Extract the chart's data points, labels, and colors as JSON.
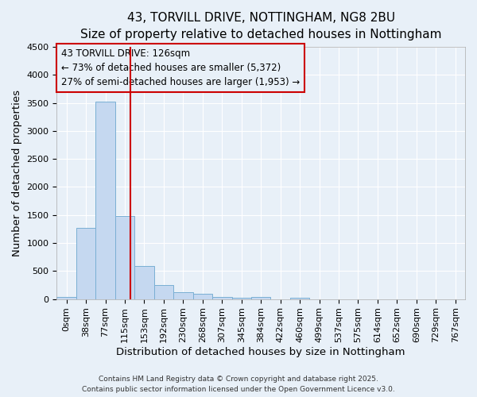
{
  "title_line1": "43, TORVILL DRIVE, NOTTINGHAM, NG8 2BU",
  "title_line2": "Size of property relative to detached houses in Nottingham",
  "xlabel": "Distribution of detached houses by size in Nottingham",
  "ylabel": "Number of detached properties",
  "bar_color": "#c5d8f0",
  "bar_edge_color": "#7aafd4",
  "background_color": "#e8f0f8",
  "grid_color": "#ffffff",
  "x_labels": [
    "0sqm",
    "38sqm",
    "77sqm",
    "115sqm",
    "153sqm",
    "192sqm",
    "230sqm",
    "268sqm",
    "307sqm",
    "345sqm",
    "384sqm",
    "422sqm",
    "460sqm",
    "499sqm",
    "537sqm",
    "575sqm",
    "614sqm",
    "652sqm",
    "690sqm",
    "729sqm",
    "767sqm"
  ],
  "bar_values": [
    30,
    1270,
    3530,
    1480,
    590,
    245,
    120,
    90,
    30,
    25,
    30,
    0,
    25,
    0,
    0,
    0,
    0,
    0,
    0,
    0,
    0
  ],
  "ylim": [
    0,
    4500
  ],
  "yticks": [
    0,
    500,
    1000,
    1500,
    2000,
    2500,
    3000,
    3500,
    4000,
    4500
  ],
  "annotation_line1": "43 TORVILL DRIVE: 126sqm",
  "annotation_line2": "← 73% of detached houses are smaller (5,372)",
  "annotation_line3": "27% of semi-detached houses are larger (1,953) →",
  "vline_color": "#cc0000",
  "annotation_box_color": "#cc0000",
  "title_fontsize": 11,
  "subtitle_fontsize": 10,
  "axis_label_fontsize": 9.5,
  "tick_fontsize": 8,
  "annotation_fontsize": 8.5,
  "footer_line1": "Contains HM Land Registry data © Crown copyright and database right 2025.",
  "footer_line2": "Contains public sector information licensed under the Open Government Licence v3.0."
}
